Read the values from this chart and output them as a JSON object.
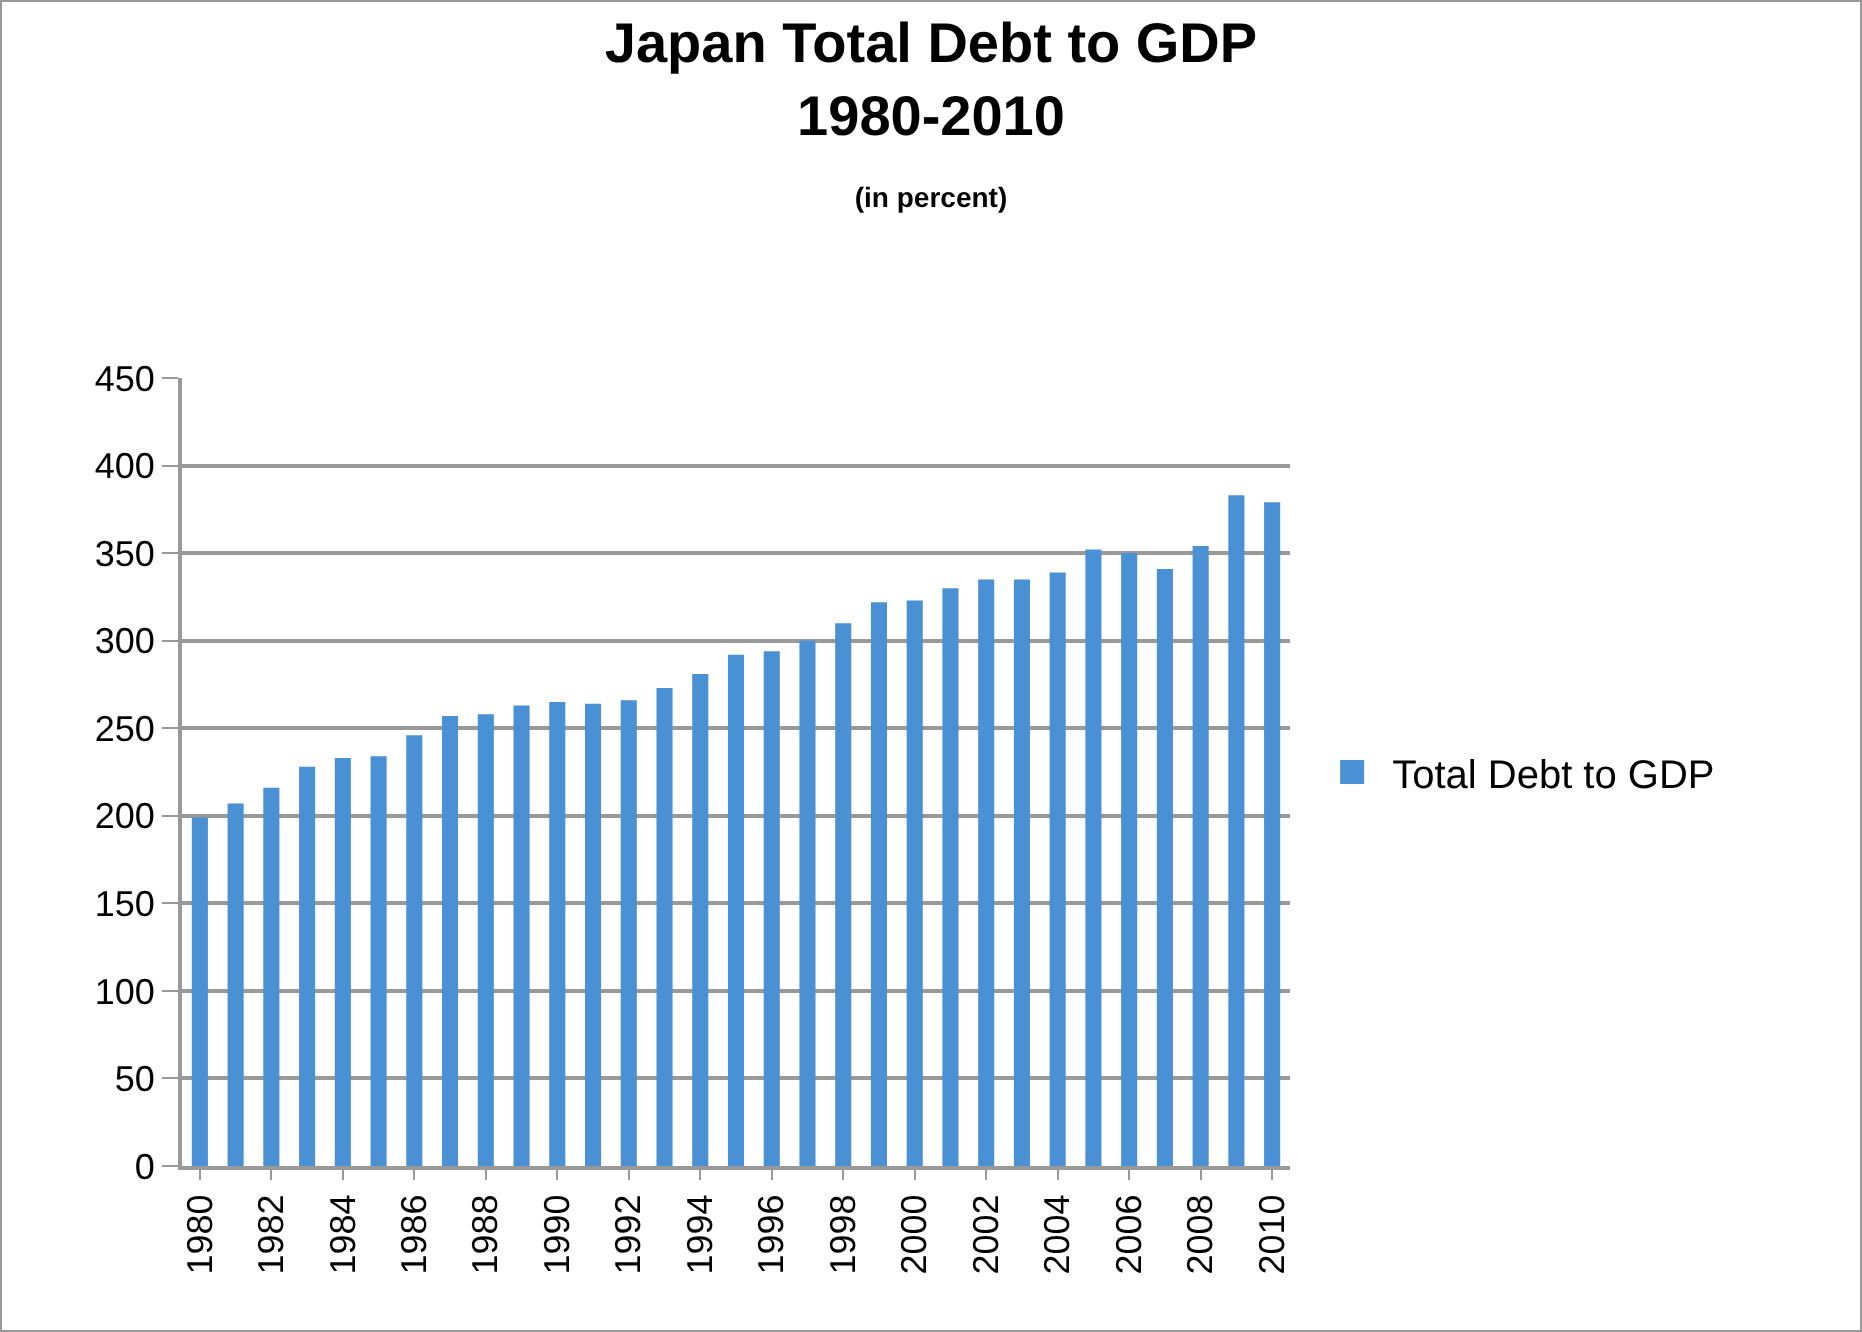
{
  "chart_data": {
    "type": "bar",
    "title": "Japan Total Debt to GDP\n1980-2010",
    "subtitle": "(in percent)",
    "categories": [
      "1980",
      null,
      "1982",
      null,
      "1984",
      null,
      "1986",
      null,
      "1988",
      null,
      "1990",
      null,
      "1992",
      null,
      "1994",
      null,
      "1996",
      null,
      "1998",
      null,
      "2000",
      null,
      "2002",
      null,
      "2004",
      null,
      "2006",
      null,
      "2008",
      null,
      "2010"
    ],
    "series": [
      {
        "name": "Total Debt to GDP",
        "color": "#4a90d4",
        "values": [
          199,
          207,
          216,
          228,
          233,
          234,
          246,
          257,
          258,
          263,
          265,
          264,
          266,
          273,
          281,
          292,
          294,
          300,
          310,
          322,
          323,
          330,
          335,
          335,
          339,
          352,
          350,
          341,
          354,
          383,
          379
        ]
      }
    ],
    "ylim": [
      0,
      450
    ],
    "yticks": [
      0,
      50,
      100,
      150,
      200,
      250,
      300,
      350,
      400,
      450
    ],
    "grid": "y",
    "legend": "right"
  }
}
